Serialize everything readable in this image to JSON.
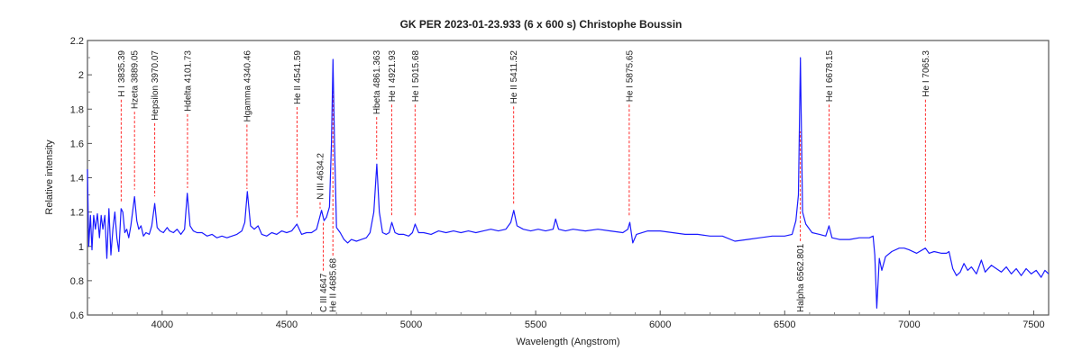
{
  "chart_data": {
    "type": "line",
    "title": "GK PER  2023-01-23.933  (6 x 600 s)  Christophe Boussin",
    "xlabel": "Wavelength (Angstrom)",
    "ylabel": "Relative intensity",
    "xlim": [
      3700,
      7560
    ],
    "ylim": [
      0.6,
      2.2
    ],
    "xticks": [
      4000,
      4500,
      5000,
      5500,
      6000,
      6500,
      7000,
      7500
    ],
    "yticks": [
      0.6,
      0.8,
      1,
      1.2,
      1.4,
      1.6,
      1.8,
      2,
      2.2
    ],
    "grid": false,
    "series_color": "#1a1aff",
    "marker_color": "#ff2a2a",
    "series": [
      {
        "points": [
          [
            3700,
            1.45
          ],
          [
            3705,
            1.0
          ],
          [
            3712,
            1.18
          ],
          [
            3718,
            0.98
          ],
          [
            3725,
            1.18
          ],
          [
            3732,
            1.1
          ],
          [
            3740,
            1.19
          ],
          [
            3748,
            1.05
          ],
          [
            3755,
            1.18
          ],
          [
            3762,
            1.1
          ],
          [
            3770,
            1.18
          ],
          [
            3778,
            0.93
          ],
          [
            3786,
            1.22
          ],
          [
            3794,
            0.95
          ],
          [
            3802,
            1.1
          ],
          [
            3810,
            1.2
          ],
          [
            3818,
            1.05
          ],
          [
            3826,
            0.97
          ],
          [
            3835,
            1.22
          ],
          [
            3842,
            1.2
          ],
          [
            3850,
            1.08
          ],
          [
            3858,
            1.1
          ],
          [
            3866,
            1.05
          ],
          [
            3874,
            1.12
          ],
          [
            3889,
            1.29
          ],
          [
            3898,
            1.15
          ],
          [
            3906,
            1.1
          ],
          [
            3915,
            1.12
          ],
          [
            3925,
            1.06
          ],
          [
            3935,
            1.08
          ],
          [
            3948,
            1.07
          ],
          [
            3958,
            1.12
          ],
          [
            3970,
            1.25
          ],
          [
            3980,
            1.11
          ],
          [
            3992,
            1.09
          ],
          [
            4005,
            1.08
          ],
          [
            4020,
            1.11
          ],
          [
            4030,
            1.09
          ],
          [
            4045,
            1.08
          ],
          [
            4060,
            1.1
          ],
          [
            4075,
            1.07
          ],
          [
            4090,
            1.1
          ],
          [
            4101,
            1.31
          ],
          [
            4112,
            1.12
          ],
          [
            4125,
            1.09
          ],
          [
            4140,
            1.08
          ],
          [
            4160,
            1.08
          ],
          [
            4180,
            1.06
          ],
          [
            4200,
            1.07
          ],
          [
            4220,
            1.05
          ],
          [
            4240,
            1.06
          ],
          [
            4260,
            1.05
          ],
          [
            4280,
            1.06
          ],
          [
            4300,
            1.07
          ],
          [
            4320,
            1.09
          ],
          [
            4332,
            1.14
          ],
          [
            4342,
            1.32
          ],
          [
            4355,
            1.12
          ],
          [
            4370,
            1.1
          ],
          [
            4385,
            1.12
          ],
          [
            4400,
            1.07
          ],
          [
            4420,
            1.06
          ],
          [
            4440,
            1.08
          ],
          [
            4460,
            1.07
          ],
          [
            4480,
            1.09
          ],
          [
            4500,
            1.08
          ],
          [
            4520,
            1.09
          ],
          [
            4541,
            1.13
          ],
          [
            4560,
            1.07
          ],
          [
            4580,
            1.08
          ],
          [
            4600,
            1.08
          ],
          [
            4620,
            1.1
          ],
          [
            4640,
            1.21
          ],
          [
            4650,
            1.15
          ],
          [
            4660,
            1.17
          ],
          [
            4672,
            1.23
          ],
          [
            4680,
            1.6
          ],
          [
            4686,
            2.09
          ],
          [
            4692,
            1.6
          ],
          [
            4700,
            1.11
          ],
          [
            4715,
            1.08
          ],
          [
            4730,
            1.04
          ],
          [
            4745,
            1.02
          ],
          [
            4760,
            1.04
          ],
          [
            4780,
            1.03
          ],
          [
            4800,
            1.04
          ],
          [
            4820,
            1.05
          ],
          [
            4835,
            1.08
          ],
          [
            4850,
            1.2
          ],
          [
            4862,
            1.48
          ],
          [
            4872,
            1.2
          ],
          [
            4885,
            1.08
          ],
          [
            4900,
            1.07
          ],
          [
            4912,
            1.08
          ],
          [
            4922,
            1.14
          ],
          [
            4935,
            1.08
          ],
          [
            4950,
            1.07
          ],
          [
            4970,
            1.07
          ],
          [
            4990,
            1.06
          ],
          [
            5005,
            1.08
          ],
          [
            5016,
            1.13
          ],
          [
            5030,
            1.08
          ],
          [
            5050,
            1.08
          ],
          [
            5080,
            1.07
          ],
          [
            5110,
            1.09
          ],
          [
            5140,
            1.08
          ],
          [
            5170,
            1.09
          ],
          [
            5200,
            1.08
          ],
          [
            5230,
            1.09
          ],
          [
            5260,
            1.08
          ],
          [
            5290,
            1.09
          ],
          [
            5320,
            1.1
          ],
          [
            5350,
            1.09
          ],
          [
            5380,
            1.1
          ],
          [
            5400,
            1.14
          ],
          [
            5412,
            1.21
          ],
          [
            5425,
            1.12
          ],
          [
            5450,
            1.1
          ],
          [
            5480,
            1.09
          ],
          [
            5510,
            1.1
          ],
          [
            5540,
            1.09
          ],
          [
            5570,
            1.1
          ],
          [
            5580,
            1.16
          ],
          [
            5592,
            1.1
          ],
          [
            5620,
            1.09
          ],
          [
            5650,
            1.1
          ],
          [
            5700,
            1.09
          ],
          [
            5750,
            1.1
          ],
          [
            5800,
            1.09
          ],
          [
            5850,
            1.08
          ],
          [
            5870,
            1.1
          ],
          [
            5878,
            1.14
          ],
          [
            5890,
            1.02
          ],
          [
            5905,
            1.07
          ],
          [
            5950,
            1.09
          ],
          [
            6000,
            1.09
          ],
          [
            6050,
            1.08
          ],
          [
            6100,
            1.07
          ],
          [
            6150,
            1.07
          ],
          [
            6200,
            1.06
          ],
          [
            6250,
            1.06
          ],
          [
            6300,
            1.03
          ],
          [
            6350,
            1.04
          ],
          [
            6400,
            1.05
          ],
          [
            6450,
            1.06
          ],
          [
            6500,
            1.06
          ],
          [
            6530,
            1.07
          ],
          [
            6545,
            1.15
          ],
          [
            6555,
            1.3
          ],
          [
            6563,
            2.1
          ],
          [
            6572,
            1.2
          ],
          [
            6585,
            1.13
          ],
          [
            6610,
            1.08
          ],
          [
            6640,
            1.07
          ],
          [
            6665,
            1.06
          ],
          [
            6678,
            1.12
          ],
          [
            6690,
            1.05
          ],
          [
            6720,
            1.04
          ],
          [
            6760,
            1.04
          ],
          [
            6800,
            1.05
          ],
          [
            6840,
            1.05
          ],
          [
            6855,
            1.06
          ],
          [
            6862,
            0.95
          ],
          [
            6870,
            0.64
          ],
          [
            6880,
            0.93
          ],
          [
            6890,
            0.86
          ],
          [
            6905,
            0.94
          ],
          [
            6930,
            0.97
          ],
          [
            6960,
            0.99
          ],
          [
            6980,
            0.99
          ],
          [
            7000,
            0.98
          ],
          [
            7030,
            0.96
          ],
          [
            7065,
            0.99
          ],
          [
            7080,
            0.96
          ],
          [
            7100,
            0.97
          ],
          [
            7130,
            0.96
          ],
          [
            7150,
            0.96
          ],
          [
            7160,
            0.97
          ],
          [
            7175,
            0.87
          ],
          [
            7190,
            0.83
          ],
          [
            7205,
            0.85
          ],
          [
            7220,
            0.9
          ],
          [
            7235,
            0.86
          ],
          [
            7250,
            0.88
          ],
          [
            7270,
            0.84
          ],
          [
            7290,
            0.92
          ],
          [
            7305,
            0.85
          ],
          [
            7330,
            0.89
          ],
          [
            7350,
            0.87
          ],
          [
            7370,
            0.85
          ],
          [
            7390,
            0.88
          ],
          [
            7410,
            0.84
          ],
          [
            7430,
            0.87
          ],
          [
            7450,
            0.83
          ],
          [
            7470,
            0.87
          ],
          [
            7490,
            0.84
          ],
          [
            7510,
            0.86
          ],
          [
            7530,
            0.82
          ],
          [
            7545,
            0.86
          ],
          [
            7560,
            0.84
          ]
        ]
      }
    ],
    "annotations": [
      {
        "wavelength": 3835.39,
        "label": "H I 3835.39",
        "placement": "above"
      },
      {
        "wavelength": 3889.05,
        "label": "Hzeta 3889.05",
        "placement": "above"
      },
      {
        "wavelength": 3970.07,
        "label": "Hepsilon 3970.07",
        "placement": "above"
      },
      {
        "wavelength": 4101.73,
        "label": "Hdelta 4101.73",
        "placement": "above"
      },
      {
        "wavelength": 4340.46,
        "label": "Hgamma 4340.46",
        "placement": "above"
      },
      {
        "wavelength": 4541.59,
        "label": "He II 4541.59",
        "placement": "above"
      },
      {
        "wavelength": 4634.2,
        "label": "N III 4634.2",
        "placement": "middle"
      },
      {
        "wavelength": 4647,
        "label": "C III 4647",
        "placement": "below"
      },
      {
        "wavelength": 4685.68,
        "label": "He II 4685.68",
        "placement": "below"
      },
      {
        "wavelength": 4861.363,
        "label": "Hbeta 4861.363",
        "placement": "above"
      },
      {
        "wavelength": 4921.93,
        "label": "He I 4921.93",
        "placement": "above"
      },
      {
        "wavelength": 5015.68,
        "label": "He I 5015.68",
        "placement": "above"
      },
      {
        "wavelength": 5411.52,
        "label": "He II 5411.52",
        "placement": "above"
      },
      {
        "wavelength": 5875.65,
        "label": "He I 5875.65",
        "placement": "above"
      },
      {
        "wavelength": 6562.801,
        "label": "Halpha 6562.801",
        "placement": "below"
      },
      {
        "wavelength": 6678.15,
        "label": "He I 6678.15",
        "placement": "above"
      },
      {
        "wavelength": 7065.3,
        "label": "He I 7065.3",
        "placement": "above"
      }
    ]
  }
}
